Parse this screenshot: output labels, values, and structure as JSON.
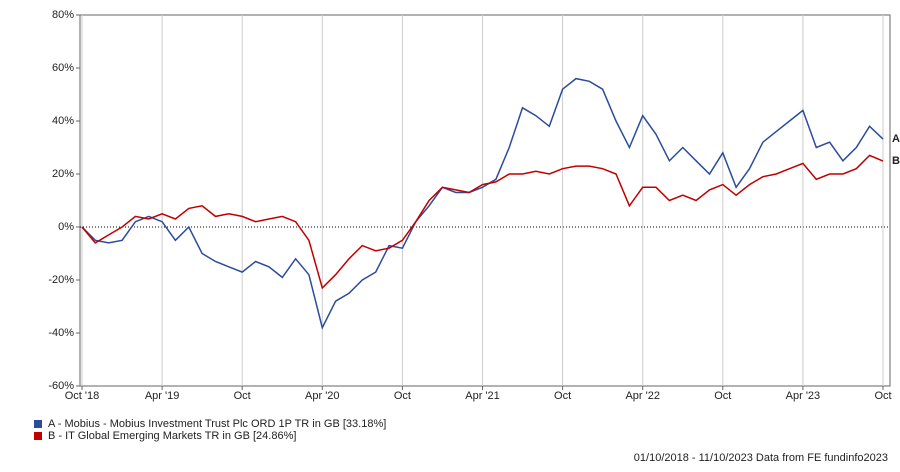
{
  "chart_data": {
    "type": "line",
    "x": [
      "2018-10",
      "2018-11",
      "2018-12",
      "2019-01",
      "2019-02",
      "2019-03",
      "2019-04",
      "2019-05",
      "2019-06",
      "2019-07",
      "2019-08",
      "2019-09",
      "2019-10",
      "2019-11",
      "2019-12",
      "2020-01",
      "2020-02",
      "2020-03",
      "2020-04",
      "2020-05",
      "2020-06",
      "2020-07",
      "2020-08",
      "2020-09",
      "2020-10",
      "2020-11",
      "2020-12",
      "2021-01",
      "2021-02",
      "2021-03",
      "2021-04",
      "2021-05",
      "2021-06",
      "2021-07",
      "2021-08",
      "2021-09",
      "2021-10",
      "2021-11",
      "2021-12",
      "2022-01",
      "2022-02",
      "2022-03",
      "2022-04",
      "2022-05",
      "2022-06",
      "2022-07",
      "2022-08",
      "2022-09",
      "2022-10",
      "2022-11",
      "2022-12",
      "2023-01",
      "2023-02",
      "2023-03",
      "2023-04",
      "2023-05",
      "2023-06",
      "2023-07",
      "2023-08",
      "2023-09",
      "2023-10"
    ],
    "series": [
      {
        "name": "A - Mobius - Mobius Investment Trust Plc ORD 1P TR in GB [33.18%]",
        "label": "A",
        "color": "#2b4c9b",
        "values": [
          0,
          -5,
          -6,
          -5,
          2,
          4,
          2,
          -5,
          0,
          -10,
          -13,
          -15,
          -17,
          -13,
          -15,
          -19,
          -12,
          -18,
          -38,
          -28,
          -25,
          -20,
          -17,
          -7,
          -8,
          2,
          8,
          15,
          13,
          13,
          15,
          18,
          30,
          45,
          42,
          38,
          52,
          56,
          55,
          52,
          40,
          30,
          42,
          35,
          25,
          30,
          25,
          20,
          28,
          15,
          22,
          32,
          36,
          40,
          44,
          30,
          32,
          25,
          30,
          38,
          33.18
        ]
      },
      {
        "name": "B - IT Global Emerging Markets TR in GB [24.86%]",
        "label": "B",
        "color": "#c00000",
        "values": [
          0,
          -6,
          -3,
          0,
          4,
          3,
          5,
          3,
          7,
          8,
          4,
          5,
          4,
          2,
          3,
          4,
          2,
          -5,
          -23,
          -18,
          -12,
          -7,
          -9,
          -8,
          -5,
          2,
          10,
          15,
          14,
          13,
          16,
          17,
          20,
          20,
          21,
          20,
          22,
          23,
          23,
          22,
          20,
          8,
          15,
          15,
          10,
          12,
          10,
          14,
          16,
          12,
          16,
          19,
          20,
          22,
          24,
          18,
          20,
          20,
          22,
          27,
          24.86
        ]
      }
    ],
    "xlim": [
      "2018-10",
      "2023-10"
    ],
    "xticks": [
      {
        "value": "2018-10",
        "label": "Oct '18"
      },
      {
        "value": "2019-04",
        "label": "Apr '19"
      },
      {
        "value": "2019-10",
        "label": "Oct"
      },
      {
        "value": "2020-04",
        "label": "Apr '20"
      },
      {
        "value": "2020-10",
        "label": "Oct"
      },
      {
        "value": "2021-04",
        "label": "Apr '21"
      },
      {
        "value": "2021-10",
        "label": "Oct"
      },
      {
        "value": "2022-04",
        "label": "Apr '22"
      },
      {
        "value": "2022-10",
        "label": "Oct"
      },
      {
        "value": "2023-04",
        "label": "Apr '23"
      },
      {
        "value": "2023-10",
        "label": "Oct"
      }
    ],
    "ylim": [
      -60,
      80
    ],
    "yticks": [
      {
        "value": -60,
        "label": "-60%"
      },
      {
        "value": -40,
        "label": "-40%"
      },
      {
        "value": -20,
        "label": "-20%"
      },
      {
        "value": 0,
        "label": "0%"
      },
      {
        "value": 20,
        "label": "20%"
      },
      {
        "value": 40,
        "label": "40%"
      },
      {
        "value": 60,
        "label": "60%"
      },
      {
        "value": 80,
        "label": "80%"
      }
    ],
    "grid": true,
    "footer": "01/10/2018 - 11/10/2023 Data from FE fundinfo2023"
  }
}
